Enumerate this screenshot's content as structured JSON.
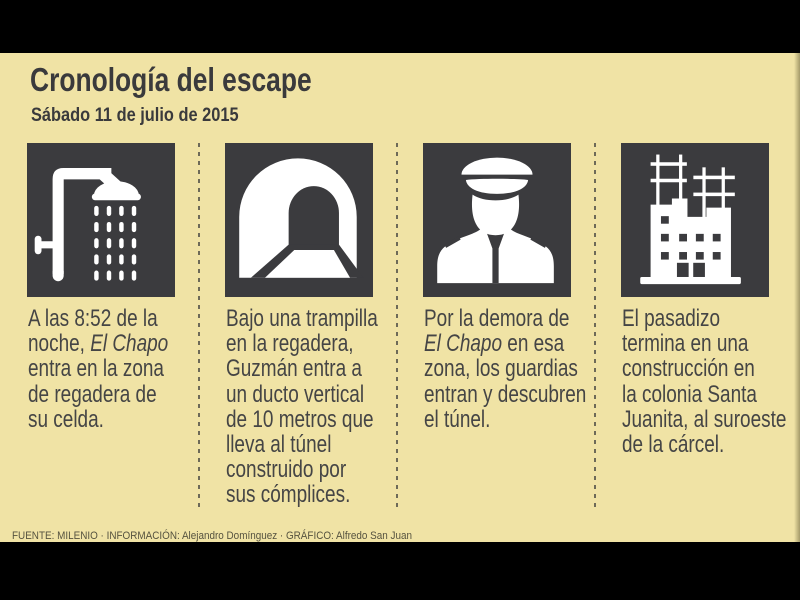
{
  "frame": {
    "letterbox_color": "#000000",
    "panel_color": "#f0e3a5",
    "box_color": "#3b3b3e",
    "icon_color": "#ffffff",
    "text_color": "#454545",
    "title_color": "#3a3a3c"
  },
  "header": {
    "title": "Cronología del escape",
    "date": "Sábado 11 de julio de 2015"
  },
  "steps": [
    {
      "icon": "shower-icon",
      "text": [
        {
          "t": "A las 8:52 de la\nnoche, "
        },
        {
          "t": "El Chapo",
          "i": true
        },
        {
          "t": "\nentra en la zona\nde regadera de\nsu celda."
        }
      ]
    },
    {
      "icon": "tunnel-icon",
      "text": [
        {
          "t": "Bajo una trampilla\nen la regadera,\nGuzmán entra a\nun ducto vertical\nde 10 metros que\nlleva al túnel\nconstruido por\nsus cómplices."
        }
      ]
    },
    {
      "icon": "guard-icon",
      "text": [
        {
          "t": "Por la demora de\n"
        },
        {
          "t": "El Chapo",
          "i": true
        },
        {
          "t": " en esa\nzona, los guardias\nentran y descubren\nel túnel."
        }
      ]
    },
    {
      "icon": "building-icon",
      "text": [
        {
          "t": "El pasadizo\ntermina en una\nconstrucción en\nla colonia Santa\nJuanita, al suroeste\nde la cárcel."
        }
      ]
    }
  ],
  "footer": {
    "credits": "FUENTE: MILENIO · INFORMACIÓN: Alejandro Domínguez · GRÁFICO: Alfredo San Juan"
  }
}
